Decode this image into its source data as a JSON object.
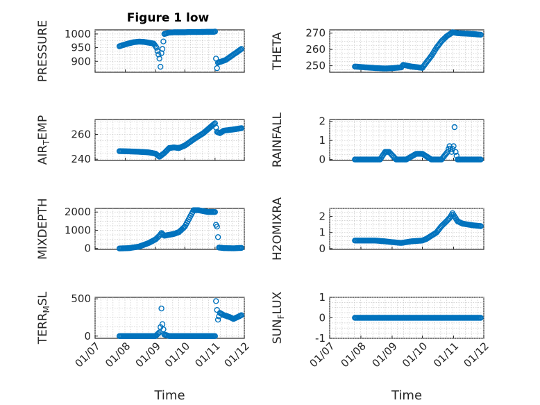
{
  "style": {
    "marker_color": "#0072BD"
  },
  "chart_data": [
    {
      "type": "scatter",
      "title": "Figure 1 low",
      "ylabel": "PRESSURE",
      "ylabel_base": "PRESSURE",
      "ylim": [
        860,
        1015
      ],
      "yticks": [
        900,
        950,
        1000
      ],
      "xlabel": "",
      "xticks": [],
      "x": [
        "07-26",
        "08-01",
        "08-05",
        "08-10",
        "08-15",
        "08-20",
        "08-25",
        "08-30",
        "09-02",
        "09-04",
        "09-05",
        "09-06",
        "09-07",
        "09-08",
        "09-10",
        "09-15",
        "09-20",
        "09-30",
        "10-05",
        "10-15",
        "10-25",
        "10-31",
        "11-01",
        "11-02",
        "11-03",
        "11-04",
        "11-08",
        "11-12",
        "11-16",
        "11-20",
        "11-24",
        "11-28"
      ],
      "y": [
        955,
        962,
        966,
        970,
        972,
        971,
        968,
        965,
        950,
        925,
        910,
        880,
        930,
        945,
        1000,
        1005,
        1006,
        1006,
        1007,
        1007,
        1008,
        1008,
        1009,
        910,
        875,
        895,
        900,
        905,
        915,
        925,
        935,
        945
      ]
    },
    {
      "type": "scatter",
      "ylabel": "THETA",
      "ylabel_base": "THETA",
      "ylim": [
        246,
        272
      ],
      "yticks": [
        250,
        260,
        270
      ],
      "xlabel": "",
      "xticks": [],
      "x": [
        "07-26",
        "08-05",
        "08-15",
        "08-25",
        "09-01",
        "09-10",
        "09-12",
        "09-20",
        "10-01",
        "10-05",
        "10-10",
        "10-15",
        "10-20",
        "10-25",
        "10-31",
        "11-05",
        "11-10",
        "11-20",
        "11-28"
      ],
      "y": [
        249.5,
        249,
        248.6,
        248.3,
        248.5,
        249,
        250.5,
        249.5,
        248.7,
        252,
        256,
        261,
        265,
        268,
        270.5,
        270,
        269.8,
        269.5,
        269
      ]
    },
    {
      "type": "scatter",
      "ylabel": "AIR_TEMP",
      "ylabel_base": "AIR",
      "ylabel_sub": "T",
      "ylabel_rest": "EMP",
      "ylim": [
        239,
        272
      ],
      "yticks": [
        240,
        260
      ],
      "xlabel": "",
      "xticks": [],
      "x": [
        "07-26",
        "08-05",
        "08-15",
        "08-25",
        "09-01",
        "09-05",
        "09-10",
        "09-15",
        "09-20",
        "09-25",
        "10-01",
        "10-10",
        "10-20",
        "11-01",
        "11-03",
        "11-06",
        "11-10",
        "11-15",
        "11-20",
        "11-28"
      ],
      "y": [
        246.5,
        246.3,
        246,
        245.5,
        244.5,
        242,
        245,
        249,
        249.5,
        249,
        251,
        256,
        261,
        269,
        262,
        261,
        263,
        263.5,
        264,
        265
      ]
    },
    {
      "type": "scatter",
      "ylabel": "RAINFALL",
      "ylabel_base": "RAINFALL",
      "ylim": [
        -0.05,
        2.1
      ],
      "yticks": [
        0,
        1,
        2
      ],
      "xlabel": "",
      "xticks": [],
      "x": [
        "07-26",
        "08-10",
        "08-20",
        "08-25",
        "08-27",
        "08-29",
        "09-05",
        "09-15",
        "09-25",
        "10-01",
        "10-10",
        "10-20",
        "10-26",
        "10-28",
        "10-30",
        "11-01",
        "11-02",
        "11-03",
        "11-05",
        "11-10",
        "11-20",
        "11-28"
      ],
      "y": [
        0,
        0,
        0,
        0.4,
        0.4,
        0.4,
        0,
        0,
        0.3,
        0.3,
        0,
        0,
        0.4,
        0.7,
        0.4,
        0.7,
        1.7,
        0.4,
        0,
        0,
        0,
        0
      ]
    },
    {
      "type": "scatter",
      "ylabel": "MIXDEPTH",
      "ylabel_base": "MIXDEPTH",
      "ylim": [
        -50,
        2200
      ],
      "yticks": [
        0,
        1000,
        2000
      ],
      "xlabel": "",
      "xticks": [],
      "x": [
        "07-26",
        "08-05",
        "08-15",
        "08-25",
        "09-01",
        "09-05",
        "09-07",
        "09-10",
        "09-15",
        "09-20",
        "09-25",
        "10-01",
        "10-05",
        "10-10",
        "10-15",
        "10-20",
        "10-25",
        "11-01",
        "11-02",
        "11-03",
        "11-05",
        "11-10",
        "11-20",
        "11-28"
      ],
      "y": [
        0,
        20,
        100,
        300,
        500,
        700,
        850,
        700,
        750,
        800,
        900,
        1200,
        1600,
        2100,
        2100,
        2050,
        2000,
        2000,
        1300,
        1200,
        50,
        20,
        10,
        30
      ]
    },
    {
      "type": "scatter",
      "ylabel": "H2OMIXRA",
      "ylabel_base": "H2OMIXRA",
      "ylim": [
        -0.05,
        2.5
      ],
      "yticks": [
        0,
        1,
        2
      ],
      "xlabel": "",
      "xticks": [],
      "x": [
        "07-26",
        "08-05",
        "08-15",
        "08-25",
        "09-01",
        "09-10",
        "09-20",
        "10-01",
        "10-05",
        "10-10",
        "10-15",
        "10-20",
        "10-25",
        "10-28",
        "10-31",
        "11-03",
        "11-05",
        "11-10",
        "11-15",
        "11-20",
        "11-28"
      ],
      "y": [
        0.5,
        0.5,
        0.5,
        0.45,
        0.4,
        0.35,
        0.45,
        0.5,
        0.6,
        0.8,
        1.0,
        1.4,
        1.7,
        1.9,
        2.2,
        1.9,
        1.7,
        1.55,
        1.5,
        1.45,
        1.4
      ]
    },
    {
      "type": "scatter",
      "ylabel": "TERR_MSL",
      "ylabel_base": "TERR",
      "ylabel_sub": "M",
      "ylabel_rest": "SL",
      "ylim": [
        -30,
        520
      ],
      "yticks": [
        0,
        500
      ],
      "xlabel": "Time",
      "xticks": [
        "01/07",
        "01/08",
        "01/09",
        "01/10",
        "01/11",
        "01/12"
      ],
      "x": [
        "07-26",
        "08-10",
        "08-25",
        "09-01",
        "09-05",
        "09-06",
        "09-07",
        "09-08",
        "09-10",
        "09-15",
        "09-25",
        "10-10",
        "10-25",
        "11-01",
        "11-02",
        "11-03",
        "11-04",
        "11-06",
        "11-10",
        "11-15",
        "11-20",
        "11-28"
      ],
      "y": [
        0,
        0,
        0,
        0,
        50,
        120,
        370,
        160,
        20,
        0,
        0,
        0,
        0,
        0,
        470,
        350,
        220,
        310,
        280,
        260,
        230,
        280
      ]
    },
    {
      "type": "scatter",
      "ylabel": "SUN_FLUX",
      "ylabel_base": "SUN",
      "ylabel_sub": "F",
      "ylabel_rest": "LUX",
      "ylim": [
        -1,
        1
      ],
      "yticks": [
        -1,
        0,
        1
      ],
      "xlabel": "Time",
      "xticks": [
        "01/07",
        "01/08",
        "01/09",
        "01/10",
        "01/11",
        "01/12"
      ],
      "x": [
        "07-26",
        "08-10",
        "08-25",
        "09-10",
        "09-25",
        "10-10",
        "10-25",
        "11-10",
        "11-28"
      ],
      "y": [
        0,
        0,
        0,
        0,
        0,
        0,
        0,
        0,
        0
      ]
    }
  ]
}
